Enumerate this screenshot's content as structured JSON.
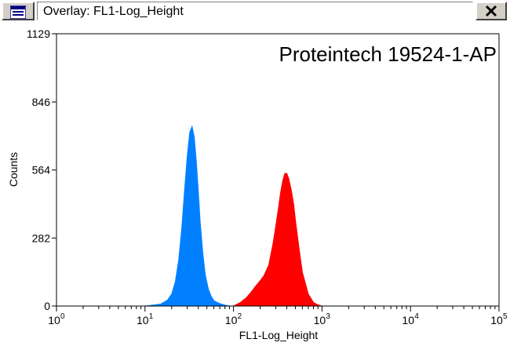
{
  "window": {
    "title": "Overlay: FL1-Log_Height",
    "system_menu_icon": "histogram-window-icon",
    "close_icon": "close-icon"
  },
  "chart_data": {
    "type": "area",
    "title": "",
    "annotation": "Proteintech 19524-1-AP",
    "xlabel": "FL1-Log_Height",
    "ylabel": "Counts",
    "x_scale": "log10",
    "xlim": [
      1,
      100000
    ],
    "ylim": [
      0,
      1129
    ],
    "x_ticks": [
      {
        "base": "10",
        "exp": "0"
      },
      {
        "base": "10",
        "exp": "1"
      },
      {
        "base": "10",
        "exp": "2"
      },
      {
        "base": "10",
        "exp": "3"
      },
      {
        "base": "10",
        "exp": "4"
      },
      {
        "base": "10",
        "exp": "5"
      }
    ],
    "y_ticks": [
      "0",
      "282",
      "564",
      "846",
      "1129"
    ],
    "grid": false,
    "legend": "none",
    "series": [
      {
        "color": "#0080ff",
        "x": [
          10,
          15,
          18,
          20,
          22,
          24,
          26,
          28,
          30,
          32,
          34,
          36,
          38,
          40,
          42,
          45,
          48,
          52,
          56,
          60,
          70,
          80,
          90
        ],
        "y": [
          0,
          8,
          25,
          50,
          100,
          190,
          320,
          480,
          620,
          720,
          745,
          700,
          600,
          480,
          350,
          220,
          130,
          70,
          40,
          22,
          10,
          4,
          0
        ]
      },
      {
        "color": "#ff0000",
        "x": [
          100,
          120,
          140,
          160,
          180,
          200,
          220,
          250,
          280,
          300,
          320,
          340,
          360,
          380,
          400,
          420,
          450,
          480,
          500,
          550,
          600,
          700,
          800,
          900,
          1000
        ],
        "y": [
          0,
          15,
          35,
          60,
          85,
          105,
          125,
          170,
          260,
          330,
          400,
          470,
          520,
          550,
          550,
          530,
          480,
          420,
          360,
          240,
          140,
          50,
          15,
          5,
          0
        ]
      }
    ]
  }
}
